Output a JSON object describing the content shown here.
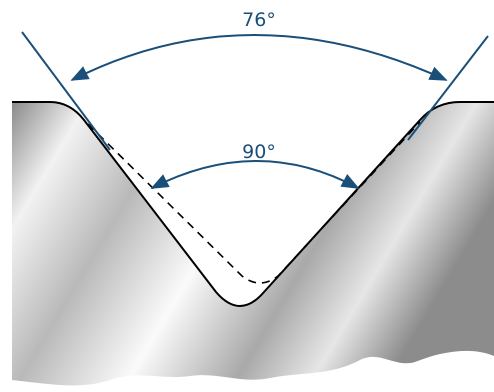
{
  "angles": {
    "outer": {
      "label": "76°"
    },
    "inner": {
      "label": "90°"
    }
  },
  "colors": {
    "annotation": "#1a4f7a",
    "outline": "#000000",
    "metal_light": "#f4f4f4",
    "metal_dark": "#7c7c7c",
    "background": "#ffffff"
  }
}
